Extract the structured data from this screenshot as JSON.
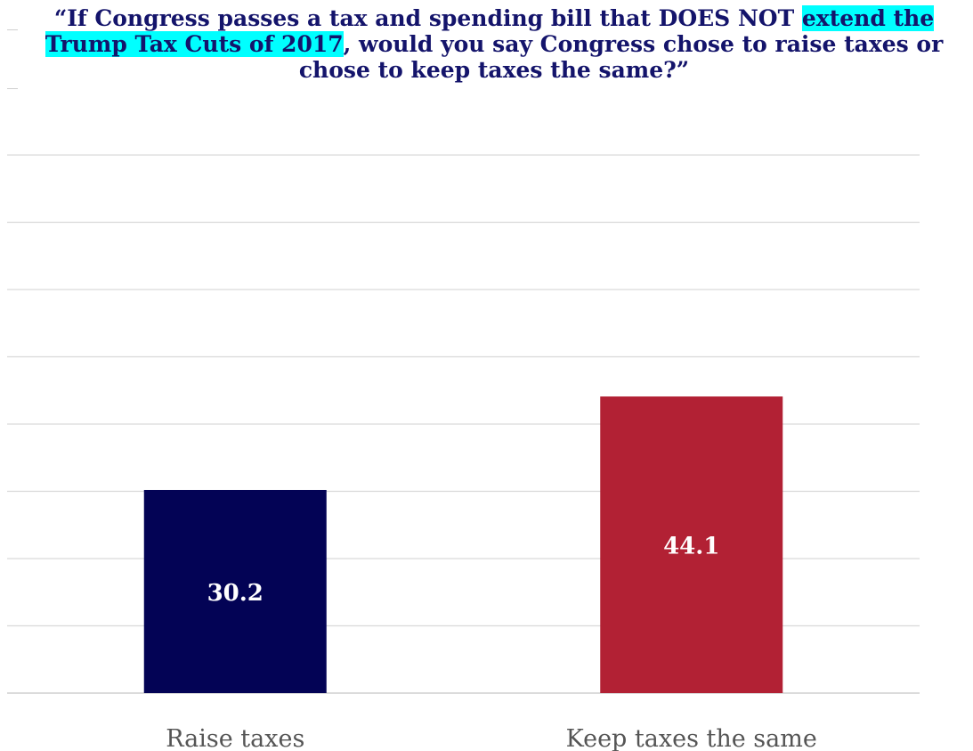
{
  "chart_data": {
    "type": "bar",
    "title_parts": [
      {
        "text": "“If Congress passes a tax and spending bill that DOES NOT ",
        "highlight": false
      },
      {
        "text": "extend the Trump Tax Cuts of 2017",
        "highlight": true
      },
      {
        "text": ", would you say Congress chose to raise taxes or chose to keep taxes the same?”",
        "highlight": false
      }
    ],
    "categories": [
      "Raise taxes",
      "Keep taxes the same"
    ],
    "values": [
      30.2,
      44.1
    ],
    "value_labels": [
      "30.2",
      "44.1"
    ],
    "colors": [
      "#030355",
      "#b22134"
    ],
    "highlight_color": "#00ffff",
    "ylim": [
      0,
      80
    ],
    "grid": true,
    "xlabel": "",
    "ylabel": ""
  }
}
